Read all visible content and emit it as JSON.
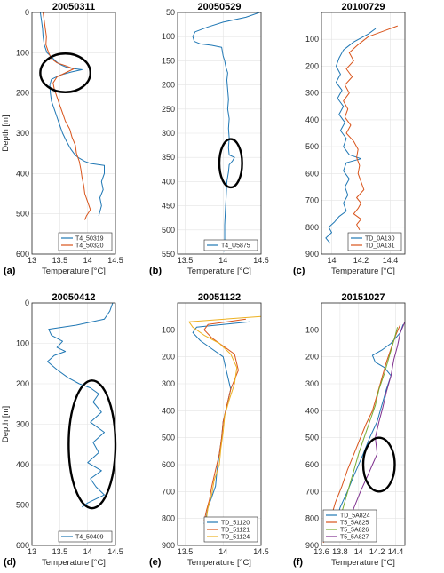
{
  "colors": {
    "blue": "#1f77b4",
    "orange": "#d9541b",
    "yellow": "#edb120",
    "purple": "#7e2f8e",
    "green": "#77ac30"
  },
  "chart_data": [
    {
      "type": "line",
      "panel_label": "(a)",
      "title": "20050311",
      "xlabel": "Temperature [°C]",
      "ylabel": "Depth [m]",
      "xlim": [
        13,
        14.5
      ],
      "ylim": [
        0,
        600
      ],
      "y_reversed": true,
      "xticks": [
        "13",
        "13.5",
        "14",
        "14.5"
      ],
      "yticks": [
        "0",
        "100",
        "200",
        "300",
        "400",
        "500",
        "600"
      ],
      "legend_position": "bottom-right",
      "grid": true,
      "series": [
        {
          "name": "T4_50319",
          "color": "blue",
          "x": [
            13.15,
            13.17,
            13.19,
            13.2,
            13.22,
            13.27,
            13.35,
            13.42,
            13.48,
            13.55,
            13.62,
            13.72,
            13.9,
            13.7,
            13.5,
            13.35,
            13.32,
            13.33,
            13.35,
            13.4,
            13.45,
            13.5,
            13.55,
            13.62,
            13.7,
            13.78,
            13.85,
            13.95,
            14.05,
            14.3,
            14.3,
            14.25,
            14.28,
            14.22,
            14.25,
            14.2
          ],
          "y": [
            0,
            20,
            40,
            60,
            80,
            100,
            110,
            120,
            127,
            132,
            136,
            139,
            142,
            148,
            156,
            166,
            180,
            200,
            220,
            240,
            260,
            280,
            300,
            320,
            340,
            355,
            362,
            370,
            375,
            380,
            400,
            420,
            440,
            460,
            480,
            505
          ]
        },
        {
          "name": "T4_50320",
          "color": "orange",
          "x": [
            13.2,
            13.22,
            13.24,
            13.26,
            13.25,
            13.3,
            13.35,
            13.45,
            13.6,
            13.75,
            13.6,
            13.45,
            13.38,
            13.4,
            13.45,
            13.5,
            13.55,
            13.6,
            13.68,
            13.72,
            13.78,
            13.8,
            13.85,
            13.88,
            13.9,
            13.93,
            13.95,
            14.0,
            14.05,
            13.98,
            13.95
          ],
          "y": [
            0,
            20,
            40,
            60,
            80,
            100,
            115,
            125,
            132,
            140,
            150,
            160,
            175,
            190,
            210,
            230,
            250,
            270,
            290,
            310,
            330,
            350,
            370,
            390,
            410,
            430,
            450,
            470,
            490,
            505,
            515
          ]
        }
      ],
      "annotations": [
        {
          "shape": "ellipse",
          "x_center": 13.6,
          "y_center": 150,
          "x_radius": 0.45,
          "y_radius": 48
        }
      ]
    },
    {
      "type": "line",
      "panel_label": "(b)",
      "title": "20050529",
      "xlabel": "Temperature [°C]",
      "ylabel": "",
      "xlim": [
        13.4,
        14.5
      ],
      "ylim": [
        50,
        550
      ],
      "y_reversed": true,
      "xticks": [
        "13.5",
        "14",
        "14.5"
      ],
      "yticks": [
        "50",
        "100",
        "150",
        "200",
        "250",
        "300",
        "350",
        "400",
        "450",
        "500",
        "550"
      ],
      "legend_position": "bottom-right",
      "grid": true,
      "series": [
        {
          "name": "T4_U5875",
          "color": "blue",
          "x": [
            14.48,
            14.3,
            14.0,
            13.8,
            13.63,
            13.6,
            13.62,
            13.7,
            13.85,
            13.98,
            14.0,
            14.02,
            14.03,
            14.04,
            14.06,
            14.05,
            14.06,
            14.07,
            14.06,
            14.08,
            14.07,
            14.08,
            14.07,
            14.08,
            14.15,
            14.12,
            14.08,
            14.07,
            14.05,
            14.04,
            14.03,
            14.02,
            14.02,
            14.01
          ],
          "y": [
            50,
            60,
            70,
            80,
            90,
            100,
            110,
            115,
            118,
            122,
            140,
            150,
            158,
            165,
            175,
            190,
            210,
            230,
            250,
            270,
            290,
            310,
            330,
            345,
            350,
            358,
            365,
            380,
            400,
            430,
            460,
            490,
            520,
            545
          ]
        }
      ],
      "annotations": [
        {
          "shape": "ellipse",
          "x_center": 14.1,
          "y_center": 362,
          "x_radius": 0.15,
          "y_radius": 50
        }
      ]
    },
    {
      "type": "line",
      "panel_label": "(c)",
      "title": "20100729",
      "xlabel": "Temperature [°C]",
      "ylabel": "",
      "xlim": [
        13.93,
        14.5
      ],
      "ylim": [
        0,
        900
      ],
      "y_reversed": true,
      "xticks": [
        "14",
        "14.2",
        "14.4"
      ],
      "yticks": [
        "100",
        "200",
        "300",
        "400",
        "500",
        "600",
        "700",
        "800",
        "900"
      ],
      "legend_position": "bottom-right",
      "grid": true,
      "series": [
        {
          "name": "TD_0A130",
          "color": "blue",
          "x": [
            14.3,
            14.25,
            14.15,
            14.08,
            14.05,
            14.03,
            14.06,
            14.03,
            14.07,
            14.04,
            14.08,
            14.05,
            14.09,
            14.06,
            14.1,
            14.08,
            14.12,
            14.2,
            14.1,
            14.08,
            14.12,
            14.09,
            14.11,
            14.08,
            14.1,
            14.05,
            14.02,
            13.98,
            14.0,
            13.96,
            13.99
          ],
          "y": [
            60,
            80,
            110,
            140,
            170,
            200,
            230,
            260,
            290,
            320,
            350,
            380,
            410,
            440,
            470,
            500,
            530,
            545,
            560,
            590,
            620,
            650,
            680,
            710,
            740,
            760,
            780,
            800,
            820,
            840,
            860
          ]
        },
        {
          "name": "TD_0A131",
          "color": "orange",
          "x": [
            14.45,
            14.35,
            14.25,
            14.18,
            14.12,
            14.15,
            14.1,
            14.14,
            14.09,
            14.12,
            14.08,
            14.11,
            14.09,
            14.13,
            14.1,
            14.15,
            14.18,
            14.17,
            14.19,
            14.18,
            14.2,
            14.22,
            14.17,
            14.2,
            14.18,
            14.15,
            14.2,
            14.17,
            14.19
          ],
          "y": [
            50,
            70,
            90,
            120,
            150,
            180,
            210,
            240,
            270,
            300,
            330,
            360,
            390,
            420,
            450,
            480,
            510,
            540,
            570,
            600,
            630,
            660,
            690,
            710,
            730,
            750,
            770,
            790,
            810
          ]
        }
      ]
    },
    {
      "type": "line",
      "panel_label": "(d)",
      "title": "20050412",
      "xlabel": "Temperature [°C]",
      "ylabel": "Depth [m]",
      "xlim": [
        13,
        14.5
      ],
      "ylim": [
        0,
        600
      ],
      "y_reversed": true,
      "xticks": [
        "13",
        "13.5",
        "14",
        "14.5"
      ],
      "yticks": [
        "0",
        "100",
        "200",
        "300",
        "400",
        "500",
        "600"
      ],
      "legend_position": "bottom-right",
      "grid": true,
      "series": [
        {
          "name": "T4_50409",
          "color": "blue",
          "x": [
            14.45,
            14.4,
            14.3,
            13.8,
            13.3,
            13.35,
            13.55,
            13.45,
            13.6,
            13.4,
            13.28,
            13.45,
            13.65,
            13.85,
            14.05,
            14.2,
            14.1,
            14.25,
            14.05,
            14.3,
            14.1,
            14.2,
            14.0,
            14.25,
            14.05,
            14.15,
            14.3,
            14.0,
            13.9
          ],
          "y": [
            0,
            20,
            40,
            55,
            65,
            80,
            95,
            110,
            120,
            130,
            145,
            165,
            185,
            200,
            210,
            225,
            245,
            270,
            295,
            320,
            345,
            370,
            395,
            415,
            435,
            455,
            475,
            495,
            505
          ]
        }
      ],
      "annotations": [
        {
          "shape": "ellipse",
          "x_center": 14.08,
          "y_center": 350,
          "x_radius": 0.42,
          "y_radius": 158
        }
      ]
    },
    {
      "type": "line",
      "panel_label": "(e)",
      "title": "20051122",
      "xlabel": "Temperature [°C]",
      "ylabel": "",
      "xlim": [
        13.4,
        14.5
      ],
      "ylim": [
        0,
        900
      ],
      "y_reversed": true,
      "xticks": [
        "13.5",
        "14",
        "14.5"
      ],
      "yticks": [
        "100",
        "200",
        "300",
        "400",
        "500",
        "600",
        "700",
        "800",
        "900"
      ],
      "legend_position": "bottom-right",
      "grid": true,
      "series": [
        {
          "name": "TD_51120",
          "color": "blue",
          "x": [
            14.35,
            13.65,
            13.6,
            13.7,
            13.85,
            14.0,
            14.05,
            14.1,
            14.05,
            14.0,
            13.98,
            13.95,
            13.92,
            13.9,
            13.85,
            13.8,
            13.78,
            13.75
          ],
          "y": [
            70,
            90,
            110,
            140,
            170,
            200,
            260,
            320,
            380,
            440,
            500,
            560,
            620,
            680,
            720,
            760,
            790,
            820
          ]
        },
        {
          "name": "TD_51121",
          "color": "orange",
          "x": [
            14.3,
            13.8,
            13.75,
            13.85,
            14.0,
            14.15,
            14.2,
            14.1,
            14.05,
            14.0,
            13.98,
            13.95,
            13.9,
            13.85,
            13.82,
            13.78,
            13.75
          ],
          "y": [
            60,
            80,
            100,
            130,
            160,
            190,
            250,
            320,
            380,
            440,
            500,
            560,
            620,
            680,
            730,
            770,
            810
          ]
        },
        {
          "name": "TD_51124",
          "color": "yellow",
          "x": [
            14.5,
            13.55,
            13.6,
            13.75,
            13.95,
            14.1,
            14.18,
            14.15,
            14.08,
            14.02,
            14.0,
            13.97,
            13.95,
            13.88,
            13.85,
            13.8,
            13.78
          ],
          "y": [
            50,
            70,
            90,
            120,
            150,
            190,
            240,
            300,
            360,
            420,
            480,
            540,
            600,
            660,
            710,
            760,
            800
          ]
        }
      ]
    },
    {
      "type": "line",
      "panel_label": "(f)",
      "title": "20151027",
      "xlabel": "Temperature [°C]",
      "ylabel": "",
      "xlim": [
        13.6,
        14.5
      ],
      "ylim": [
        0,
        900
      ],
      "y_reversed": true,
      "xticks": [
        "13.6",
        "13.8",
        "14",
        "14.2",
        "14.4"
      ],
      "yticks": [
        "100",
        "200",
        "300",
        "400",
        "500",
        "600",
        "700",
        "800",
        "900"
      ],
      "legend_position": "bottom-left",
      "grid": true,
      "series": [
        {
          "name": "TD_5A824",
          "color": "blue",
          "x": [
            14.48,
            14.45,
            14.35,
            14.25,
            14.15,
            14.18,
            14.28,
            14.35,
            14.3,
            14.25,
            14.2,
            14.12,
            14.05,
            13.95,
            13.88,
            13.8,
            13.75,
            13.7
          ],
          "y": [
            80,
            110,
            150,
            175,
            195,
            220,
            240,
            270,
            320,
            380,
            440,
            500,
            560,
            640,
            700,
            760,
            820,
            880
          ]
        },
        {
          "name": "T5_5A825",
          "color": "orange",
          "x": [
            14.45,
            14.4,
            14.35,
            14.3,
            14.25,
            14.2,
            14.15,
            14.08,
            14.02,
            13.95,
            13.88,
            13.82,
            13.75,
            13.7,
            13.65,
            13.62
          ],
          "y": [
            80,
            120,
            170,
            220,
            280,
            340,
            400,
            450,
            500,
            560,
            620,
            680,
            740,
            800,
            850,
            890
          ]
        },
        {
          "name": "T5_5A826",
          "color": "green",
          "x": [
            14.42,
            14.38,
            14.33,
            14.28,
            14.22,
            14.18,
            14.12,
            14.06,
            14.0,
            13.95,
            13.9,
            13.85,
            13.8,
            13.76
          ],
          "y": [
            90,
            140,
            200,
            260,
            320,
            380,
            440,
            500,
            560,
            620,
            680,
            740,
            800,
            850
          ]
        },
        {
          "name": "T5_5A827",
          "color": "purple",
          "x": [
            14.5,
            14.45,
            14.42,
            14.38,
            14.35,
            14.3,
            14.26,
            14.22,
            14.18,
            14.2,
            14.15,
            14.1,
            14.02,
            13.95,
            13.9,
            13.85
          ],
          "y": [
            70,
            110,
            160,
            210,
            270,
            330,
            390,
            440,
            500,
            560,
            600,
            640,
            700,
            760,
            810,
            860
          ]
        }
      ],
      "annotations": [
        {
          "shape": "ellipse",
          "x_center": 14.22,
          "y_center": 600,
          "x_radius": 0.17,
          "y_radius": 100
        }
      ]
    }
  ]
}
